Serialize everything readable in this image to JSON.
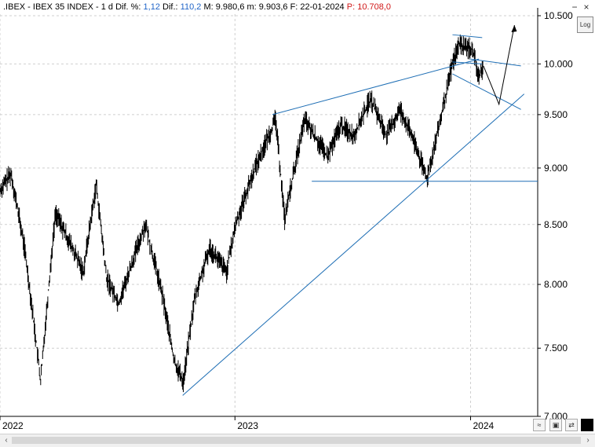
{
  "header": {
    "symbol": ".IBEX - IBEX 35 INDEX -",
    "interval": "1 d",
    "dif_pct_label": "Dif. %:",
    "dif_pct_value": "1,12",
    "dif_label": "Dif.:",
    "dif_value": "110,2",
    "max_label": "M:",
    "max_value": "9.980,6",
    "min_label": "m:",
    "min_value": "9.903,6",
    "date_label": "F:",
    "date_value": "22-01-2024",
    "price_label": "P:",
    "price_value": "10.708,0"
  },
  "toolbar": {
    "log_label": "Log",
    "close_symbol": "×",
    "minimize_symbol": "−"
  },
  "colors": {
    "price_line": "#000000",
    "trendline": "#1f6fb5",
    "grid": "#cfcfcf",
    "dif_value": "#1f64c8",
    "price_value": "#d01818"
  },
  "chart_data": {
    "type": "line",
    "series": [
      {
        "values_x_dates": [
          "2022-01-03",
          "2022-01-20",
          "2022-02-10",
          "2022-03-07",
          "2022-03-30",
          "2022-05-12",
          "2022-06-01",
          "2022-06-17",
          "2022-07-06",
          "2022-08-16",
          "2022-09-12",
          "2022-09-30",
          "2022-10-14",
          "2022-11-01",
          "2022-11-24",
          "2022-12-20",
          "2023-01-03",
          "2023-02-02",
          "2023-03-06",
          "2023-03-20",
          "2023-04-20",
          "2023-05-25",
          "2023-06-15",
          "2023-07-05",
          "2023-07-31",
          "2023-08-25",
          "2023-09-15",
          "2023-10-06",
          "2023-10-26",
          "2023-11-15",
          "2023-12-05",
          "2023-12-15",
          "2024-01-05",
          "2024-01-15",
          "2024-01-22"
        ],
        "values": [
          8800,
          8950,
          8300,
          7250,
          8600,
          8100,
          8850,
          8050,
          7850,
          8500,
          7900,
          7400,
          7250,
          7900,
          8300,
          8100,
          8500,
          9000,
          9450,
          8550,
          9450,
          9100,
          9400,
          9300,
          9650,
          9300,
          9550,
          9250,
          8900,
          9400,
          10000,
          10200,
          10150,
          9850,
          9980
        ]
      }
    ],
    "x_ticks": [
      "2022",
      "2023",
      "2024"
    ],
    "y_ticks": [
      "7.000",
      "7.500",
      "8.000",
      "8.500",
      "9.000",
      "9.500",
      "10.000",
      "10.500"
    ],
    "ylim": [
      7000,
      10500
    ],
    "grid": true,
    "y_axis_side": "right",
    "annotations": {
      "support_line": [
        [
          "2022-10-13",
          7150
        ],
        [
          "2024-03-25",
          9700
        ]
      ],
      "upper_channel_line": [
        [
          "2023-03-01",
          9500
        ],
        [
          "2024-01-15",
          10050
        ]
      ],
      "horizontal_line": {
        "from": "2023-05-01",
        "value": 8880
      },
      "wedge_upper": [
        [
          "2023-12-05",
          10300
        ],
        [
          "2024-01-20",
          10270
        ]
      ],
      "wedge_lower": [
        [
          "2023-12-05",
          10020
        ],
        [
          "2024-01-20",
          10000
        ]
      ],
      "projection_down_channel": [
        [
          [
            "2024-01-01",
            10050
          ],
          [
            "2024-03-20",
            9980
          ]
        ],
        [
          [
            "2023-12-05",
            9900
          ],
          [
            "2024-03-20",
            9550
          ]
        ]
      ],
      "projection_path": [
        [
          "2024-01-22",
          9980
        ],
        [
          "2024-02-15",
          9600
        ],
        [
          "2024-03-10",
          10400
        ]
      ]
    }
  }
}
